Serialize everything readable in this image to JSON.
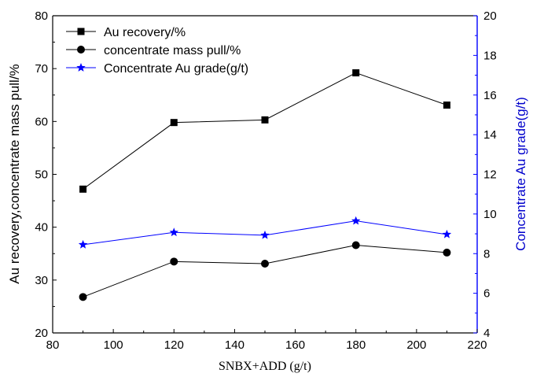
{
  "chart_data": {
    "type": "line",
    "xlabel": "SNBX+ADD (g/t)",
    "ylabel": "Au recovery,concentrate mass pull/%",
    "y2label": "Concentrate Au grade(g/t)",
    "xlim": [
      80,
      220
    ],
    "ylim": [
      20,
      80
    ],
    "y2lim": [
      4,
      20
    ],
    "x_ticks": [
      80,
      100,
      120,
      140,
      160,
      180,
      200,
      220
    ],
    "y_ticks": [
      20,
      30,
      40,
      50,
      60,
      70,
      80
    ],
    "y2_ticks": [
      4,
      6,
      8,
      10,
      12,
      14,
      16,
      18,
      20
    ],
    "x": [
      90,
      120,
      150,
      180,
      210
    ],
    "legend_position": "top-left",
    "grid": false,
    "series": [
      {
        "name": "Au recovery/%",
        "axis": "left",
        "marker": "square",
        "color": "#000000",
        "values": [
          47.2,
          59.8,
          60.3,
          69.2,
          63.1
        ]
      },
      {
        "name": "concentrate mass pull/%",
        "axis": "left",
        "marker": "circle",
        "color": "#000000",
        "values": [
          26.8,
          33.5,
          33.1,
          36.6,
          35.2
        ]
      },
      {
        "name": "Concentrate Au grade(g/t)",
        "axis": "right",
        "marker": "star",
        "color": "#0000ff",
        "values": [
          8.45,
          9.07,
          8.93,
          9.65,
          8.97
        ]
      }
    ]
  }
}
